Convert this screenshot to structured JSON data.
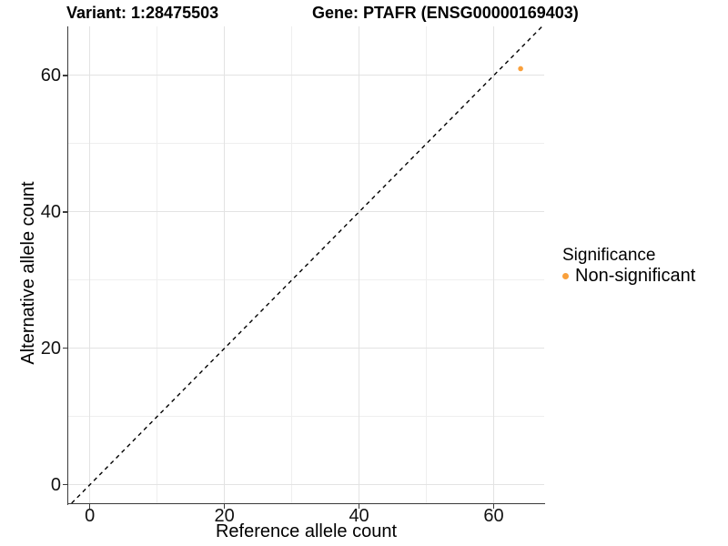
{
  "chart_data": {
    "type": "scatter",
    "titles": {
      "left": "Variant: 1:28475503",
      "right": "Gene: PTAFR (ENSG00000169403)"
    },
    "xlabel": "Reference allele count",
    "ylabel": "Alternative allele count",
    "x_ticks": [
      0,
      20,
      40,
      60
    ],
    "y_ticks": [
      0,
      20,
      40,
      60
    ],
    "x_minor_ticks": [
      10,
      30,
      50
    ],
    "y_minor_ticks": [
      10,
      30,
      50
    ],
    "xlim": [
      -3.2,
      67.5
    ],
    "ylim": [
      -2.7,
      67.2
    ],
    "grid": "major+minor",
    "points": [
      {
        "x": 64,
        "y": 61,
        "series": "Non-significant"
      }
    ],
    "identity_line": {
      "slope": 1,
      "intercept": 0,
      "style": "dashed",
      "color": "#000000"
    },
    "legend": {
      "title": "Significance",
      "position": "right",
      "items": [
        {
          "label": "Non-significant",
          "color": "#F9A03C"
        }
      ]
    },
    "colors": {
      "background": "#FFFFFF",
      "point": "#F9A03C",
      "grid_major": "#E3E3E3",
      "grid_minor": "#EFEFEF",
      "axis_line": "#3B3B3B",
      "text": "#000000"
    }
  }
}
